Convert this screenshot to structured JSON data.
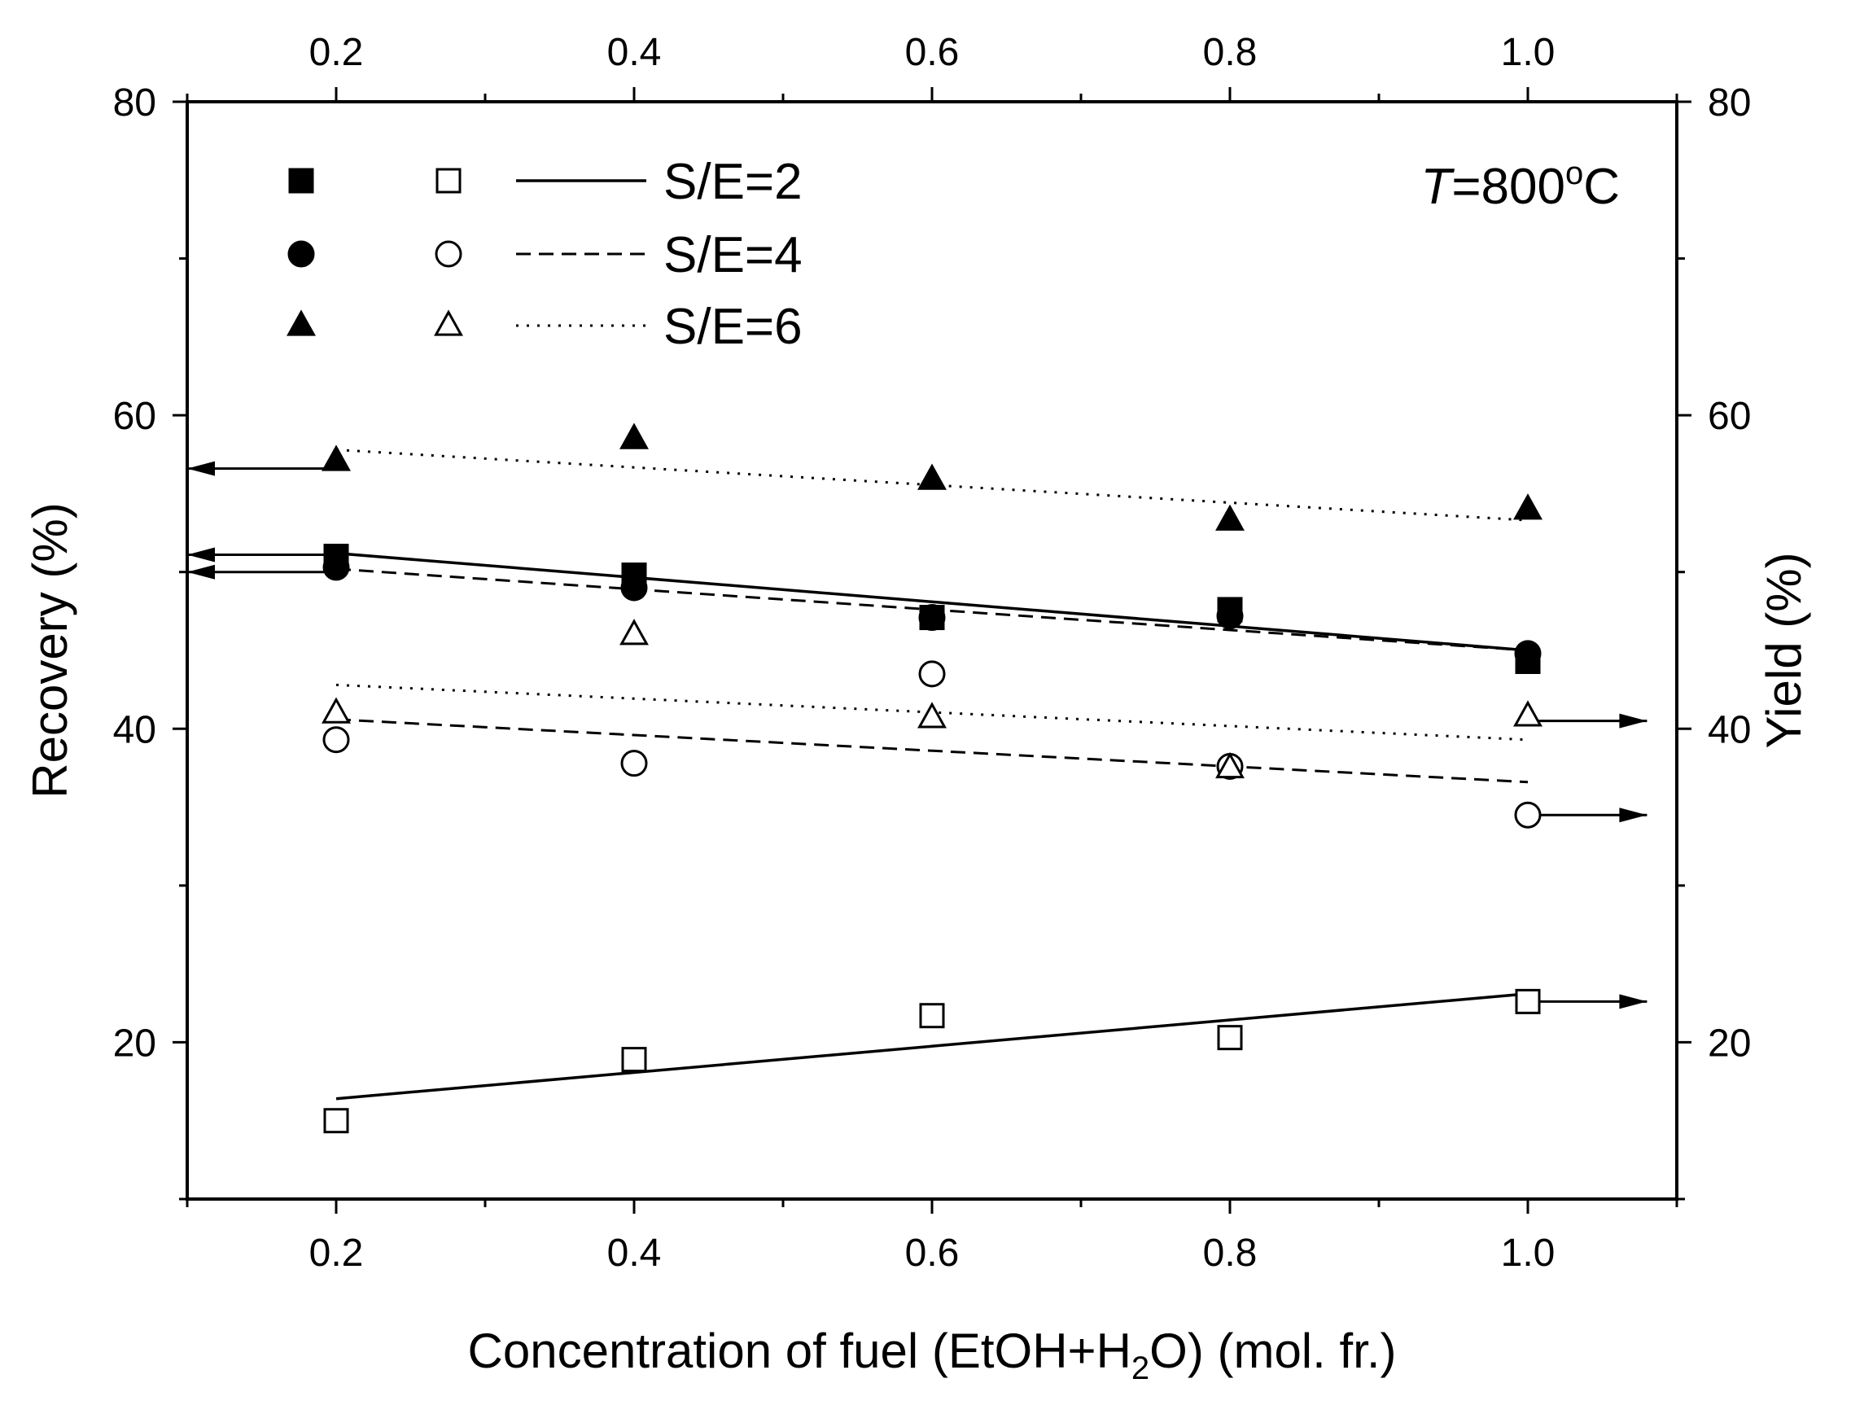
{
  "chart_data": {
    "type": "scatter",
    "title": "",
    "annotation": {
      "prefix": "T",
      "eq_value": "=800",
      "sup": "o",
      "unit": "C"
    },
    "x_axis": {
      "label_parts": {
        "before": "Concentration of fuel (EtOH+H",
        "sub": "2",
        "after": "O) (mol. fr.)"
      },
      "range": [
        0.1,
        1.1
      ],
      "ticks": [
        0.2,
        0.4,
        0.6,
        0.8,
        1.0
      ],
      "tick_labels": [
        "0.2",
        "0.4",
        "0.6",
        "0.8",
        "1.0"
      ],
      "minor_ticks": [
        0.1,
        0.3,
        0.5,
        0.7,
        0.9,
        1.1
      ]
    },
    "y_left": {
      "label": "Recovery (%)",
      "range": [
        10,
        80
      ],
      "ticks": [
        20,
        40,
        60,
        80
      ],
      "tick_labels": [
        "20",
        "40",
        "60",
        "80"
      ],
      "minor_ticks": [
        10,
        30,
        50,
        70
      ]
    },
    "y_right": {
      "label": "Yield (%)",
      "range": [
        10,
        80
      ],
      "ticks": [
        20,
        40,
        60,
        80
      ],
      "tick_labels": [
        "20",
        "40",
        "60",
        "80"
      ],
      "minor_ticks": [
        10,
        30,
        50,
        70
      ]
    },
    "x_top": {
      "tick_labels": [
        "0.2",
        "0.4",
        "0.6",
        "0.8",
        "1.0"
      ]
    },
    "x": [
      0.2,
      0.4,
      0.6,
      0.8,
      1.0
    ],
    "series": [
      {
        "name": "Recovery S/E=2",
        "axis": "left",
        "marker": "square",
        "filled": true,
        "values": [
          51.0,
          49.8,
          47.1,
          47.6,
          44.3
        ]
      },
      {
        "name": "Recovery S/E=4",
        "axis": "left",
        "marker": "circle",
        "filled": true,
        "values": [
          50.3,
          49.0,
          47.1,
          47.2,
          44.8
        ]
      },
      {
        "name": "Recovery S/E=6",
        "axis": "left",
        "marker": "triangle",
        "filled": true,
        "values": [
          57.1,
          58.5,
          55.9,
          53.3,
          54.0
        ]
      },
      {
        "name": "Yield S/E=2",
        "axis": "right",
        "marker": "square",
        "filled": false,
        "values": [
          15.0,
          18.9,
          21.7,
          20.3,
          22.6
        ]
      },
      {
        "name": "Yield S/E=4",
        "axis": "right",
        "marker": "circle",
        "filled": false,
        "values": [
          39.3,
          37.8,
          43.5,
          37.6,
          34.5
        ]
      },
      {
        "name": "Yield S/E=6",
        "axis": "right",
        "marker": "triangle",
        "filled": false,
        "values": [
          41.0,
          46.0,
          40.7,
          37.5,
          40.8
        ]
      }
    ],
    "fit_lines": [
      {
        "name": "fit Recovery S/E=2",
        "style": "solid",
        "x": [
          0.2,
          1.0
        ],
        "values": [
          51.2,
          45.0
        ]
      },
      {
        "name": "fit Recovery S/E=4",
        "style": "dashed",
        "x": [
          0.2,
          1.0
        ],
        "values": [
          50.2,
          45.0
        ]
      },
      {
        "name": "fit Recovery S/E=6",
        "style": "dotted",
        "x": [
          0.2,
          1.0
        ],
        "values": [
          57.8,
          53.3
        ]
      },
      {
        "name": "fit Yield S/E=2",
        "style": "solid",
        "x": [
          0.2,
          1.0
        ],
        "values": [
          16.4,
          23.1
        ]
      },
      {
        "name": "fit Yield S/E=4",
        "style": "dashed",
        "x": [
          0.2,
          1.0
        ],
        "values": [
          40.6,
          36.6
        ]
      },
      {
        "name": "fit Yield S/E=6",
        "style": "dotted",
        "x": [
          0.2,
          1.0
        ],
        "values": [
          42.8,
          39.3
        ]
      }
    ],
    "arrows": [
      {
        "name": "arrow-recovery-s-e-6",
        "direction": "left",
        "x_from": 0.2,
        "x_to": 0.1,
        "y": 56.6
      },
      {
        "name": "arrow-recovery-s-e-2",
        "direction": "left",
        "x_from": 0.2,
        "x_to": 0.1,
        "y": 51.1
      },
      {
        "name": "arrow-recovery-s-e-4",
        "direction": "left",
        "x_from": 0.2,
        "x_to": 0.1,
        "y": 50.0
      },
      {
        "name": "arrow-yield-s-e-6",
        "direction": "right",
        "x_from": 1.0,
        "x_to": 1.08,
        "y": 40.5
      },
      {
        "name": "arrow-yield-s-e-4",
        "direction": "right",
        "x_from": 1.0,
        "x_to": 1.08,
        "y": 34.5
      },
      {
        "name": "arrow-yield-s-e-2",
        "direction": "right",
        "x_from": 1.0,
        "x_to": 1.08,
        "y": 22.6
      }
    ],
    "legend": {
      "position": "top-left",
      "entries": [
        {
          "label": "S/E=2",
          "marker": "square",
          "line": "solid"
        },
        {
          "label": "S/E=4",
          "marker": "circle",
          "line": "dashed"
        },
        {
          "label": "S/E=6",
          "marker": "triangle",
          "line": "dotted"
        }
      ]
    },
    "colors": {
      "ink": "#000000",
      "background": "#ffffff"
    }
  }
}
